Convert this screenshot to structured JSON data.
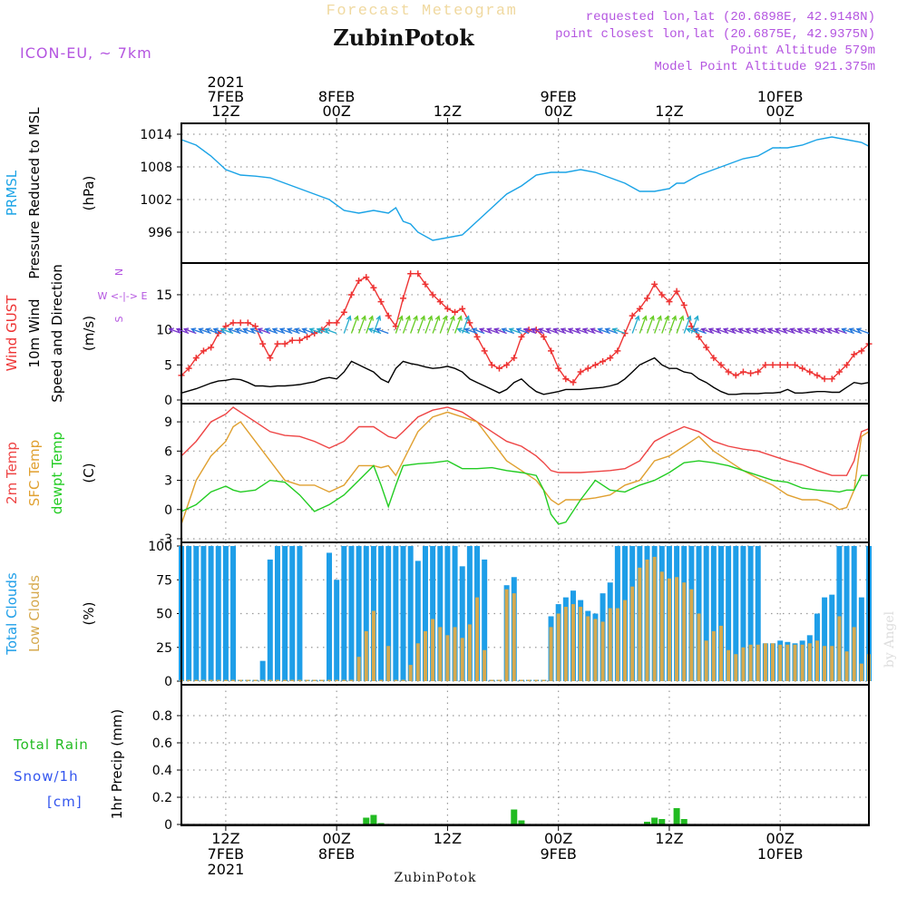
{
  "header": {
    "forecast_label": "Forecast Meteogram",
    "station": "ZubinPotok",
    "model": "ICON-EU, ~ 7km",
    "requested": "requested lon,lat (20.6898E, 42.9148N)",
    "closest": "point closest lon,lat (20.6875E, 42.9375N)",
    "point_alt": "Point Altitude 579m",
    "model_alt": "Model Point Altitude 921.375m",
    "footer_station": "ZubinPotok",
    "watermark": "by Angel"
  },
  "colors": {
    "pressure": "#1aa3e6",
    "gust": "#ee3333",
    "wind": "#000000",
    "temp2m": "#ee4444",
    "sfc": "#e0a030",
    "dewpt": "#22cc22",
    "total_clouds": "#1e9ee8",
    "low_clouds": "#d6a94e",
    "rain": "#22bb22",
    "snow": "#3355ee",
    "meta": "#b455e0"
  },
  "time_axis": {
    "start_hour": 0,
    "end_hour": 93,
    "top_labels": [
      {
        "hour": 6,
        "lines": [
          "2021",
          "7FEB",
          "12Z"
        ]
      },
      {
        "hour": 21,
        "lines": [
          "8FEB",
          "00Z"
        ]
      },
      {
        "hour": 36,
        "lines": [
          "12Z"
        ]
      },
      {
        "hour": 51,
        "lines": [
          "9FEB",
          "00Z"
        ]
      },
      {
        "hour": 66,
        "lines": [
          "12Z"
        ]
      },
      {
        "hour": 81,
        "lines": [
          "10FEB",
          "00Z"
        ]
      }
    ],
    "bottom_labels": [
      {
        "hour": 6,
        "lines": [
          "12Z",
          "7FEB",
          "2021"
        ]
      },
      {
        "hour": 21,
        "lines": [
          "00Z",
          "8FEB"
        ]
      },
      {
        "hour": 36,
        "lines": [
          "12Z"
        ]
      },
      {
        "hour": 51,
        "lines": [
          "00Z",
          "9FEB"
        ]
      },
      {
        "hour": 66,
        "lines": [
          "12Z"
        ]
      },
      {
        "hour": 81,
        "lines": [
          "00Z",
          "10FEB"
        ]
      }
    ]
  },
  "chart_data": [
    {
      "type": "line",
      "title": "PRMSL Pressure Reduced to MSL",
      "ylabels": [
        "PRMSL",
        "Pressure Reduced to MSL"
      ],
      "unit": "(hPa)",
      "ylim": [
        991,
        1015
      ],
      "yticks": [
        996,
        1002,
        1008,
        1014
      ],
      "x": [
        0,
        2,
        4,
        6,
        8,
        10,
        12,
        14,
        16,
        18,
        20,
        22,
        24,
        26,
        28,
        29,
        30,
        31,
        32,
        34,
        36,
        38,
        40,
        42,
        44,
        46,
        48,
        50,
        52,
        54,
        56,
        58,
        60,
        62,
        64,
        66,
        67,
        68,
        70,
        72,
        74,
        76,
        78,
        80,
        82,
        84,
        86,
        88,
        90,
        92,
        93
      ],
      "series": [
        {
          "name": "PRMSL",
          "values": [
            1013,
            1012,
            1010,
            1007.5,
            1006.5,
            1006.3,
            1006,
            1005,
            1004,
            1003,
            1002,
            1000,
            999.5,
            1000,
            999.5,
            1000.5,
            998,
            997.5,
            996,
            994.5,
            995,
            995.5,
            998,
            1000.5,
            1003,
            1004.5,
            1006.5,
            1007,
            1007,
            1007.5,
            1007,
            1006,
            1005,
            1003.5,
            1003.5,
            1004,
            1005,
            1005,
            1006.5,
            1007.5,
            1008.5,
            1009.5,
            1010,
            1011.5,
            1011.5,
            1012,
            1013,
            1013.5,
            1013,
            1012.5,
            1011.8
          ]
        }
      ]
    },
    {
      "type": "line",
      "title": "Wind GUST / 10m Wind Speed and Direction",
      "ylabels": [
        "Wind GUST",
        "10m Wind",
        "Speed and Direction"
      ],
      "unit": "(m/s)",
      "compass": [
        "N",
        "W <-|-> E",
        "S"
      ],
      "ylim": [
        0,
        19
      ],
      "yticks": [
        0,
        5,
        10,
        15
      ],
      "x": [
        0,
        1,
        2,
        3,
        4,
        5,
        6,
        7,
        8,
        9,
        10,
        11,
        12,
        13,
        14,
        15,
        16,
        17,
        18,
        19,
        20,
        21,
        22,
        23,
        24,
        25,
        26,
        27,
        28,
        29,
        30,
        31,
        32,
        33,
        34,
        35,
        36,
        37,
        38,
        39,
        40,
        41,
        42,
        43,
        44,
        45,
        46,
        47,
        48,
        49,
        50,
        51,
        52,
        53,
        54,
        55,
        56,
        57,
        58,
        59,
        60,
        61,
        62,
        63,
        64,
        65,
        66,
        67,
        68,
        69,
        70,
        71,
        72,
        73,
        74,
        75,
        76,
        77,
        78,
        79,
        80,
        81,
        82,
        83,
        84,
        85,
        86,
        87,
        88,
        89,
        90,
        91,
        92,
        93
      ],
      "series": [
        {
          "name": "Wind GUST",
          "values": [
            3.5,
            4.5,
            6,
            7,
            7.5,
            9.5,
            10.5,
            11,
            11,
            11,
            10.5,
            8,
            6,
            8,
            8,
            8.5,
            8.5,
            9,
            9.5,
            10,
            11,
            11,
            12.5,
            15,
            17,
            17.5,
            16,
            14,
            12,
            10.5,
            14.5,
            18,
            18,
            16.5,
            15,
            14,
            13,
            12.5,
            13,
            11,
            9,
            7,
            5,
            4.5,
            5,
            6,
            9,
            10,
            10,
            9,
            7,
            4.5,
            3,
            2.5,
            4,
            4.5,
            5,
            5.5,
            6,
            7,
            9.5,
            12,
            13,
            14.5,
            16.5,
            15,
            14,
            15.5,
            13.5,
            10.5,
            9,
            7.5,
            6,
            5,
            4,
            3.5,
            4,
            3.8,
            4,
            5,
            5,
            5,
            5,
            5,
            4.5,
            4,
            3.5,
            3,
            3,
            4,
            5,
            6.5,
            7,
            8
          ]
        },
        {
          "name": "10m Wind",
          "values": [
            1,
            1.3,
            1.6,
            2,
            2.4,
            2.7,
            2.8,
            3,
            2.9,
            2.5,
            2,
            2,
            1.9,
            2,
            2,
            2.1,
            2.2,
            2.4,
            2.6,
            3,
            3.2,
            3,
            4,
            5.5,
            5,
            4.5,
            4,
            3,
            2.5,
            4.5,
            5.5,
            5.2,
            5,
            4.7,
            4.5,
            4.6,
            4.8,
            4.5,
            4,
            3,
            2.5,
            2,
            1.5,
            1,
            1.5,
            2.5,
            3,
            2,
            1.2,
            0.8,
            1,
            1.2,
            1.5,
            1.5,
            1.5,
            1.6,
            1.7,
            1.8,
            2,
            2.3,
            3,
            4,
            5,
            5.5,
            6,
            5,
            4.5,
            4.5,
            4,
            3.8,
            3,
            2.5,
            1.8,
            1.2,
            0.8,
            0.8,
            0.9,
            0.9,
            0.9,
            1,
            1,
            1.1,
            1.5,
            1,
            1,
            1.1,
            1.2,
            1.2,
            1.1,
            1.1,
            1.8,
            2.5,
            2.3,
            2.5
          ]
        }
      ]
    },
    {
      "type": "line",
      "title": "2m Temp / SFC Temp / dewpt Temp",
      "ylabels": [
        "2m Temp",
        "SFC Temp",
        "dewpt Temp"
      ],
      "unit": "(C)",
      "ylim": [
        -3,
        10.5
      ],
      "yticks": [
        -3,
        0,
        3,
        6,
        9
      ],
      "x": [
        0,
        2,
        4,
        6,
        7,
        8,
        10,
        12,
        14,
        16,
        18,
        20,
        22,
        24,
        26,
        27,
        28,
        29,
        30,
        32,
        34,
        36,
        38,
        40,
        42,
        44,
        46,
        48,
        49,
        50,
        51,
        52,
        54,
        56,
        58,
        60,
        62,
        64,
        66,
        68,
        70,
        72,
        74,
        76,
        78,
        80,
        82,
        84,
        86,
        88,
        89,
        90,
        91,
        92,
        93
      ],
      "series": [
        {
          "name": "2m Temp",
          "values": [
            5.5,
            7,
            9,
            9.8,
            10.5,
            10,
            9,
            8,
            7.6,
            7.5,
            7,
            6.3,
            7,
            8.5,
            8.5,
            8,
            7.5,
            7.3,
            8,
            9.5,
            10.2,
            10.5,
            10,
            9,
            8,
            7,
            6.5,
            5.5,
            4.8,
            4,
            3.8,
            3.8,
            3.8,
            3.9,
            4,
            4.2,
            5,
            7,
            7.8,
            8.5,
            8,
            7,
            6.5,
            6.2,
            6,
            5.5,
            5,
            4.6,
            4,
            3.5,
            3.5,
            3.5,
            5,
            8,
            8.3
          ]
        },
        {
          "name": "SFC Temp",
          "values": [
            -1.5,
            3,
            5.5,
            7,
            8.5,
            9,
            7,
            5,
            3,
            2.5,
            2.5,
            1.8,
            2.5,
            4.5,
            4.5,
            4.3,
            4.5,
            3.5,
            5,
            8,
            9.5,
            10,
            9.5,
            9,
            7,
            5,
            4,
            3,
            2,
            1,
            0.5,
            1,
            1,
            1.2,
            1.5,
            2.5,
            3,
            5,
            5.5,
            6.5,
            7.5,
            6,
            5,
            4,
            3.2,
            2.5,
            1.5,
            1,
            1,
            0.5,
            0,
            0.2,
            2,
            7.5,
            8
          ]
        },
        {
          "name": "dewpt Temp",
          "values": [
            -0.2,
            0.5,
            1.8,
            2.4,
            2,
            1.8,
            2,
            3,
            2.8,
            1.5,
            -0.2,
            0.5,
            1.5,
            3,
            4.5,
            2.5,
            0.3,
            2.5,
            4.5,
            4.7,
            4.8,
            5,
            4.2,
            4.2,
            4.3,
            4,
            3.8,
            3.5,
            2,
            -0.5,
            -1.5,
            -1.3,
            1,
            3,
            2,
            1.8,
            2.5,
            3,
            3.8,
            4.8,
            5,
            4.8,
            4.5,
            4,
            3.5,
            3,
            2.8,
            2.2,
            2,
            1.9,
            1.8,
            2,
            2,
            3.5,
            3.5
          ]
        }
      ]
    },
    {
      "type": "bar",
      "title": "Total Clouds / Low Clouds",
      "ylabels": [
        "Total Clouds",
        "Low Clouds"
      ],
      "unit": "(%)",
      "ylim": [
        0,
        100
      ],
      "yticks": [
        0,
        25,
        50,
        75,
        100
      ],
      "categories": [
        0,
        1,
        2,
        3,
        4,
        5,
        6,
        7,
        8,
        9,
        10,
        11,
        12,
        13,
        14,
        15,
        16,
        17,
        18,
        19,
        20,
        21,
        22,
        23,
        24,
        25,
        26,
        27,
        28,
        29,
        30,
        31,
        32,
        33,
        34,
        35,
        36,
        37,
        38,
        39,
        40,
        41,
        42,
        43,
        44,
        45,
        46,
        47,
        48,
        49,
        50,
        51,
        52,
        53,
        54,
        55,
        56,
        57,
        58,
        59,
        60,
        61,
        62,
        63,
        64,
        65,
        66,
        67,
        68,
        69,
        70,
        71,
        72,
        73,
        74,
        75,
        76,
        77,
        78,
        79,
        80,
        81,
        82,
        83,
        84,
        85,
        86,
        87,
        88,
        89,
        90,
        91,
        92,
        93
      ],
      "series": [
        {
          "name": "Total Clouds",
          "values": [
            100,
            100,
            100,
            100,
            100,
            100,
            100,
            100,
            0,
            0,
            0,
            15,
            90,
            100,
            100,
            100,
            100,
            0,
            0,
            0,
            95,
            75,
            100,
            100,
            100,
            100,
            100,
            100,
            100,
            100,
            100,
            100,
            89,
            100,
            100,
            100,
            100,
            100,
            85,
            100,
            100,
            90,
            0,
            0,
            71,
            77,
            0,
            0,
            0,
            0,
            48,
            57,
            62,
            67,
            60,
            52,
            50,
            65,
            73,
            100,
            100,
            100,
            100,
            100,
            100,
            100,
            100,
            100,
            100,
            100,
            100,
            100,
            100,
            100,
            100,
            100,
            100,
            100,
            100,
            28,
            28,
            30,
            29,
            28,
            30,
            34,
            50,
            62,
            64,
            100,
            100,
            100,
            62,
            100
          ]
        },
        {
          "name": "Low Clouds",
          "values": [
            0,
            0,
            0,
            0,
            0,
            0,
            0,
            0,
            0,
            0,
            0,
            0,
            0,
            0,
            0,
            0,
            0,
            0,
            0,
            0,
            0,
            0,
            0,
            0,
            18,
            37,
            52,
            0,
            26,
            0,
            0,
            12,
            28,
            37,
            46,
            40,
            34,
            40,
            32,
            42,
            62,
            23,
            0,
            0,
            68,
            65,
            0,
            0,
            0,
            0,
            40,
            50,
            55,
            57,
            55,
            48,
            46,
            44,
            54,
            54,
            60,
            70,
            84,
            90,
            92,
            81,
            76,
            77,
            73,
            68,
            50,
            30,
            37,
            41,
            23,
            20,
            25,
            27,
            27,
            28,
            28,
            27,
            27,
            27,
            27,
            28,
            30,
            26,
            26,
            48,
            22,
            40,
            13,
            20
          ]
        }
      ]
    },
    {
      "type": "bar",
      "title": "1hr Precip (mm)",
      "ylabels": [
        "Total Rain",
        "Snow/1h",
        "[cm]"
      ],
      "unit": "1hr Precip (mm)",
      "ylim": [
        0,
        1
      ],
      "yticks": [
        0,
        0.2,
        0.4,
        0.6,
        0.8
      ],
      "categories": [
        25,
        26,
        27,
        45,
        46,
        63,
        64,
        65,
        67,
        68
      ],
      "series": [
        {
          "name": "Total Rain",
          "values": [
            0.05,
            0.07,
            0.01,
            0.11,
            0.03,
            0.02,
            0.05,
            0.04,
            0.12,
            0.04
          ]
        },
        {
          "name": "Snow/1h",
          "values": [
            0,
            0,
            0,
            0,
            0,
            0,
            0,
            0,
            0,
            0
          ]
        }
      ]
    }
  ]
}
